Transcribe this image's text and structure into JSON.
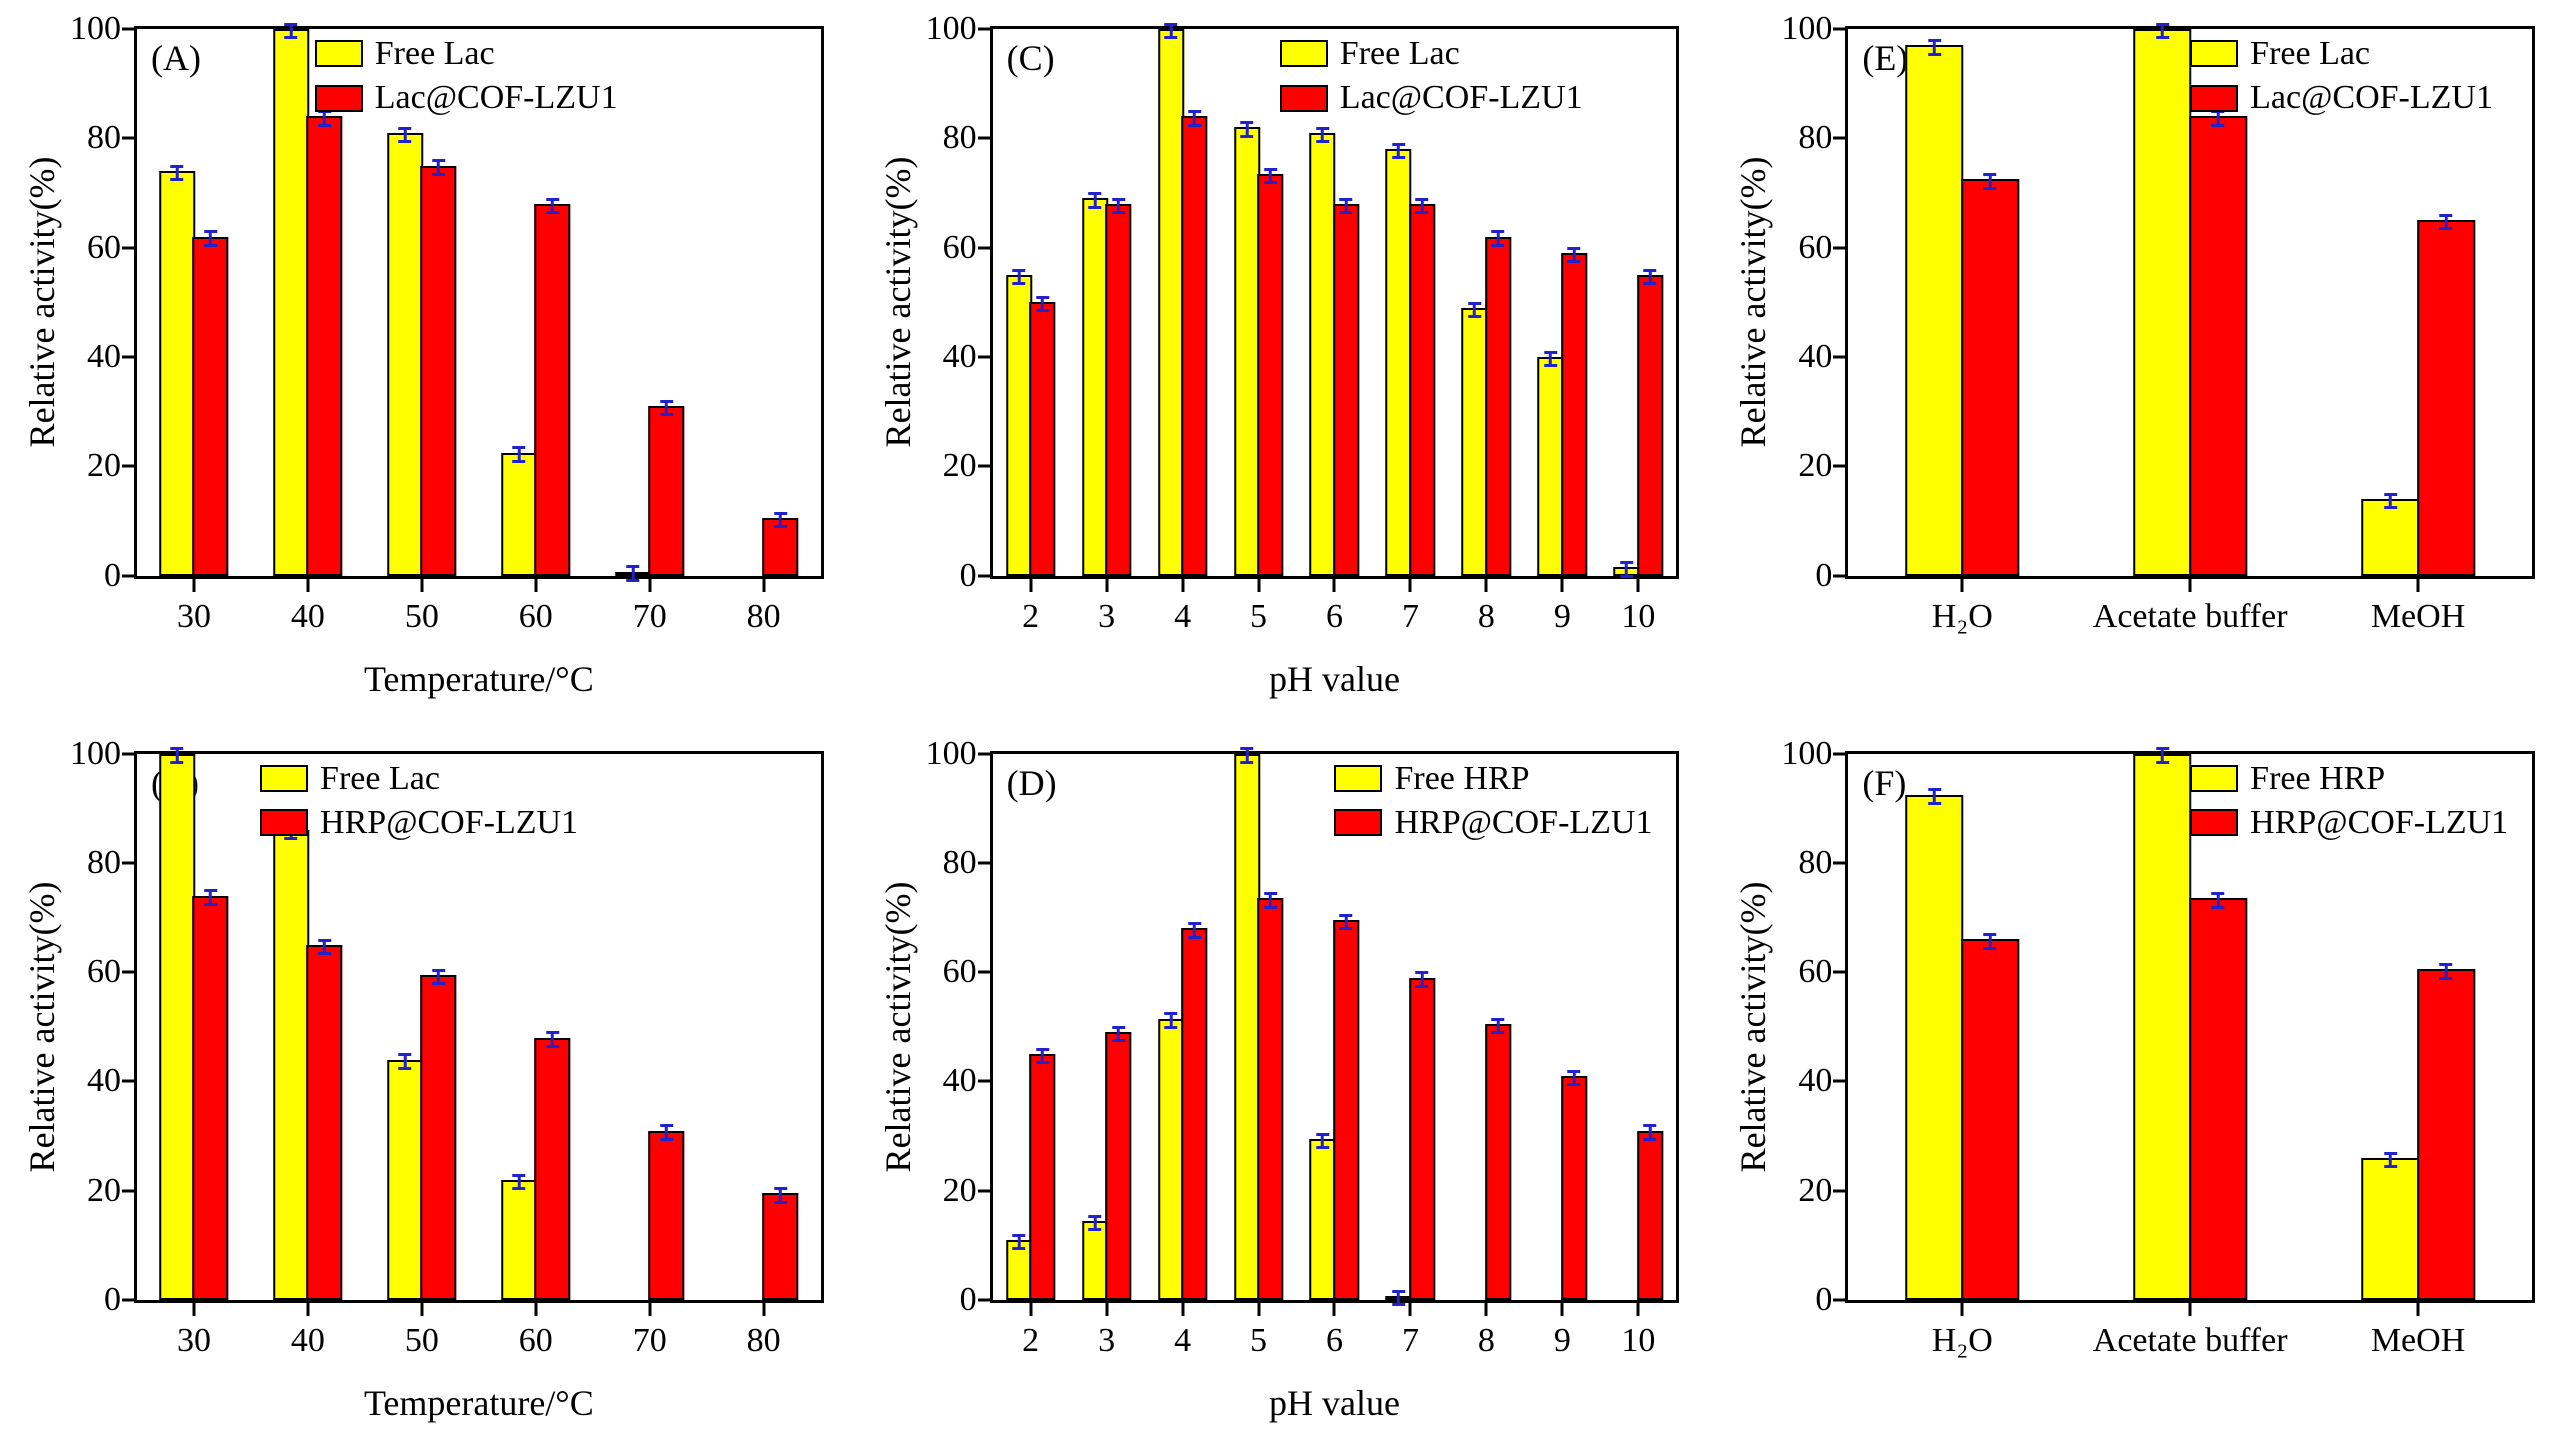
{
  "figure": {
    "background": "#ffffff"
  },
  "colors": {
    "bar_yellow": "#ffff00",
    "bar_red": "#ff0000",
    "error_bar": "#2222cc",
    "axis": "#000000"
  },
  "chart_data": [
    {
      "id": "A",
      "panel_label": "(A)",
      "type": "bar",
      "xlabel": "Temperature/°C",
      "ylabel": "Relative activity(%)",
      "ylim": [
        0,
        100
      ],
      "yticks": [
        0,
        20,
        40,
        60,
        80,
        100
      ],
      "grid": false,
      "legend_position": "top",
      "legend_x_frac": 0.26,
      "error": 1.5,
      "categories": [
        "30",
        "40",
        "50",
        "60",
        "70",
        "80"
      ],
      "series": [
        {
          "name": "Free Lac",
          "color": "#ffff00",
          "values": [
            74,
            100,
            81,
            22.5,
            0.5,
            0
          ]
        },
        {
          "name": "Lac@COF-LZU1",
          "color": "#ff0000",
          "values": [
            62,
            84,
            75,
            68,
            31,
            10.5
          ]
        }
      ]
    },
    {
      "id": "C",
      "panel_label": "(C)",
      "type": "bar",
      "xlabel": "pH value",
      "ylabel": "Relative activity(%)",
      "ylim": [
        0,
        100
      ],
      "yticks": [
        0,
        20,
        40,
        60,
        80,
        100
      ],
      "grid": false,
      "legend_position": "top",
      "legend_x_frac": 0.42,
      "error": 1.5,
      "categories": [
        "2",
        "3",
        "4",
        "5",
        "6",
        "7",
        "8",
        "9",
        "10"
      ],
      "series": [
        {
          "name": "Free Lac",
          "color": "#ffff00",
          "values": [
            55,
            69,
            100,
            82,
            81,
            78,
            49,
            40,
            1.5
          ]
        },
        {
          "name": "Lac@COF-LZU1",
          "color": "#ff0000",
          "values": [
            50,
            68,
            84,
            73.5,
            68,
            68,
            62,
            59,
            55
          ]
        }
      ]
    },
    {
      "id": "E",
      "panel_label": "(E)",
      "type": "bar",
      "xlabel": "",
      "ylabel": "Relative activity(%)",
      "ylim": [
        0,
        100
      ],
      "yticks": [
        0,
        20,
        40,
        60,
        80,
        100
      ],
      "grid": false,
      "legend_position": "top-right",
      "legend_x_frac": 0.5,
      "error": 1.5,
      "categories": [
        "H₂O",
        "Acetate buffer",
        "MeOH"
      ],
      "series": [
        {
          "name": "Free Lac",
          "color": "#ffff00",
          "values": [
            97,
            100,
            14
          ]
        },
        {
          "name": "Lac@COF-LZU1",
          "color": "#ff0000",
          "values": [
            72.5,
            84,
            65
          ]
        }
      ]
    },
    {
      "id": "B",
      "panel_label": "(B)",
      "type": "bar",
      "xlabel": "Temperature/°C",
      "ylabel": "Relative activity(%)",
      "ylim": [
        0,
        100
      ],
      "yticks": [
        0,
        20,
        40,
        60,
        80,
        100
      ],
      "grid": false,
      "legend_position": "top",
      "legend_x_frac": 0.18,
      "error": 1.5,
      "categories": [
        "30",
        "40",
        "50",
        "60",
        "70",
        "80"
      ],
      "series": [
        {
          "name": "Free Lac",
          "color": "#ffff00",
          "values": [
            100,
            86,
            44,
            22,
            0,
            0
          ]
        },
        {
          "name": "HRP@COF-LZU1",
          "color": "#ff0000",
          "values": [
            74,
            65,
            59.5,
            48,
            31,
            19.5
          ]
        }
      ]
    },
    {
      "id": "D",
      "panel_label": "(D)",
      "type": "bar",
      "xlabel": "pH value",
      "ylabel": "Relative activity(%)",
      "ylim": [
        0,
        100
      ],
      "yticks": [
        0,
        20,
        40,
        60,
        80,
        100
      ],
      "grid": false,
      "legend_position": "top-right",
      "legend_x_frac": 0.5,
      "error": 1.5,
      "categories": [
        "2",
        "3",
        "4",
        "5",
        "6",
        "7",
        "8",
        "9",
        "10"
      ],
      "series": [
        {
          "name": "Free HRP",
          "color": "#ffff00",
          "values": [
            11,
            14.5,
            51.5,
            100,
            29.5,
            0.5,
            0,
            0,
            0
          ]
        },
        {
          "name": "HRP@COF-LZU1",
          "color": "#ff0000",
          "values": [
            45,
            49,
            68,
            73.5,
            69.5,
            59,
            50.5,
            41,
            31
          ]
        }
      ]
    },
    {
      "id": "F",
      "panel_label": "(F)",
      "type": "bar",
      "xlabel": "",
      "ylabel": "Relative activity(%)",
      "ylim": [
        0,
        100
      ],
      "yticks": [
        0,
        20,
        40,
        60,
        80,
        100
      ],
      "grid": false,
      "legend_position": "top-right",
      "legend_x_frac": 0.5,
      "error": 1.5,
      "categories": [
        "H₂O",
        "Acetate buffer",
        "MeOH"
      ],
      "series": [
        {
          "name": "Free HRP",
          "color": "#ffff00",
          "values": [
            92.5,
            100,
            26
          ]
        },
        {
          "name": "HRP@COF-LZU1",
          "color": "#ff0000",
          "values": [
            66,
            73.5,
            60.5
          ]
        }
      ]
    }
  ]
}
